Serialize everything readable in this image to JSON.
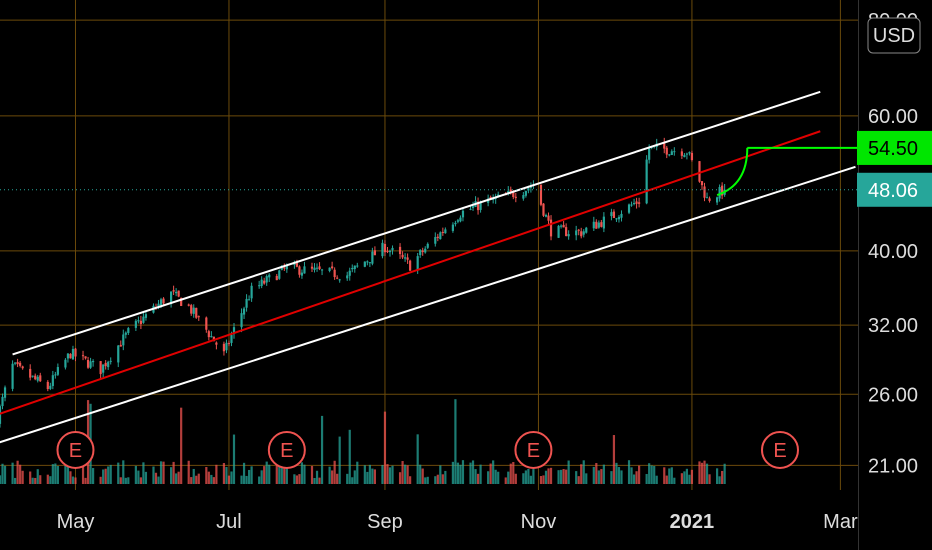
{
  "chart_data": {
    "type": "candlestick",
    "currency_button": "USD",
    "y_axis": {
      "scale": "log",
      "range": [
        19.5,
        85
      ],
      "ticks": [
        "80.00",
        "60.00",
        "40.00",
        "32.00",
        "26.00",
        "21.00"
      ],
      "tick_values": [
        80,
        60,
        40,
        32,
        26,
        21
      ]
    },
    "x_axis": {
      "ticks": [
        "May",
        "Jul",
        "Sep",
        "Nov",
        "2021",
        "Mar"
      ],
      "tick_dates": [
        "2020-05-01",
        "2020-07-01",
        "2020-09-01",
        "2020-11-01",
        "2021-01-01",
        "2021-03-01"
      ],
      "range": [
        "2020-04-01",
        "2021-03-08"
      ]
    },
    "grid": true,
    "colors": {
      "up": "#26a69a",
      "down": "#ef5350",
      "grid": "#6b4a0b",
      "channel": "#ffffff",
      "midline": "#e00000",
      "target": "#00ff00",
      "last_price_bg": "#26a69a"
    },
    "last_price": {
      "value": 48.06,
      "label": "48.06"
    },
    "target_price": {
      "value": 54.5,
      "label": "54.50"
    },
    "earnings_markers": {
      "label": "E",
      "dates": [
        "2020-05-01",
        "2020-07-24",
        "2020-10-30",
        "2021-02-05"
      ]
    },
    "channel": {
      "upper": [
        [
          "2020-04-06",
          29.3
        ],
        [
          "2021-02-21",
          64.5
        ]
      ],
      "middle": [
        [
          "2020-03-30",
          24.4
        ],
        [
          "2021-02-21",
          57.3
        ]
      ],
      "lower": [
        [
          "2020-03-30",
          22.4
        ],
        [
          "2021-03-07",
          51.5
        ]
      ]
    },
    "target_arrow": {
      "from": [
        "2021-01-11",
        47.3
      ],
      "to": [
        "2021-01-23",
        54.5
      ]
    },
    "series": [
      {
        "name": "",
        "anchors_date": [
          "2020-03-31",
          "2020-04-06",
          "2020-04-20",
          "2020-04-29",
          "2020-05-11",
          "2020-05-22",
          "2020-06-08",
          "2020-06-15",
          "2020-06-29",
          "2020-07-10",
          "2020-07-24",
          "2020-08-17",
          "2020-09-01",
          "2020-09-11",
          "2020-09-24",
          "2020-10-01",
          "2020-10-09",
          "2020-10-26",
          "2020-10-30",
          "2020-11-06",
          "2020-11-18",
          "2020-12-01",
          "2020-12-11",
          "2020-12-15",
          "2020-12-30",
          "2021-01-07",
          "2021-01-14"
        ],
        "anchors_close": [
          24.2,
          28.3,
          26.5,
          29.4,
          28.0,
          31.3,
          35.2,
          33.8,
          29.3,
          35.5,
          38.0,
          37.2,
          40.5,
          38.3,
          42.5,
          44.8,
          46.0,
          48.0,
          48.8,
          42.5,
          42.3,
          44.5,
          46.5,
          54.5,
          54.0,
          46.7,
          48.06
        ]
      }
    ]
  }
}
